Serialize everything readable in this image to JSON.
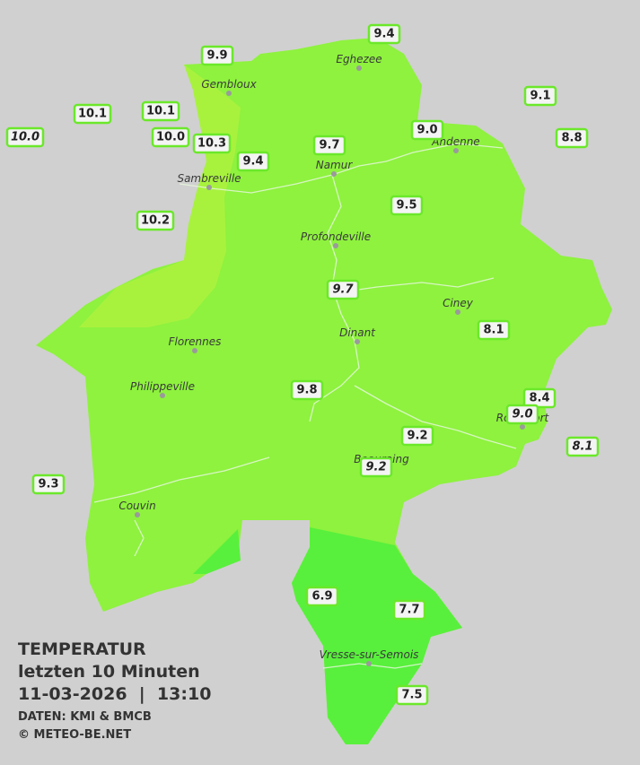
{
  "legend": {
    "title": "TEMPERATUR",
    "subtitle": "letzten 10 Minuten",
    "datetime": "11-03-2026  |  13:10",
    "source": "DATEN: KMI & BMCB",
    "copyright": "© METEO-BE.NET"
  },
  "towns": [
    {
      "name": "Gembloux"
    },
    {
      "name": "Eghezee"
    },
    {
      "name": "Andenne"
    },
    {
      "name": "Namur"
    },
    {
      "name": "Sambreville"
    },
    {
      "name": "Profondeville"
    },
    {
      "name": "Ciney"
    },
    {
      "name": "Dinant"
    },
    {
      "name": "Florennes"
    },
    {
      "name": "Philippeville"
    },
    {
      "name": "Rochefort"
    },
    {
      "name": "Beauraing"
    },
    {
      "name": "Couvin"
    },
    {
      "name": "Vresse-sur-Semois"
    }
  ],
  "stations": [
    {
      "label": "9.4"
    },
    {
      "label": "9.9"
    },
    {
      "label": "9.1"
    },
    {
      "label": "10.1"
    },
    {
      "label": "10.1"
    },
    {
      "label": "9.0"
    },
    {
      "label": "10.0",
      "style": "italic"
    },
    {
      "label": "10.0"
    },
    {
      "label": "10.3"
    },
    {
      "label": "9.7"
    },
    {
      "label": "8.8"
    },
    {
      "label": "9.4"
    },
    {
      "label": "9.5"
    },
    {
      "label": "10.2"
    },
    {
      "label": "9.7",
      "style": "italic"
    },
    {
      "label": "8.1"
    },
    {
      "label": "9.8"
    },
    {
      "label": "8.4"
    },
    {
      "label": "9.0",
      "style": "italic"
    },
    {
      "label": "9.2"
    },
    {
      "label": "8.1",
      "style": "italic"
    },
    {
      "label": "9.2",
      "style": "italic"
    },
    {
      "label": "9.3"
    },
    {
      "label": "6.9"
    },
    {
      "label": "7.7"
    },
    {
      "label": "7.5"
    }
  ]
}
